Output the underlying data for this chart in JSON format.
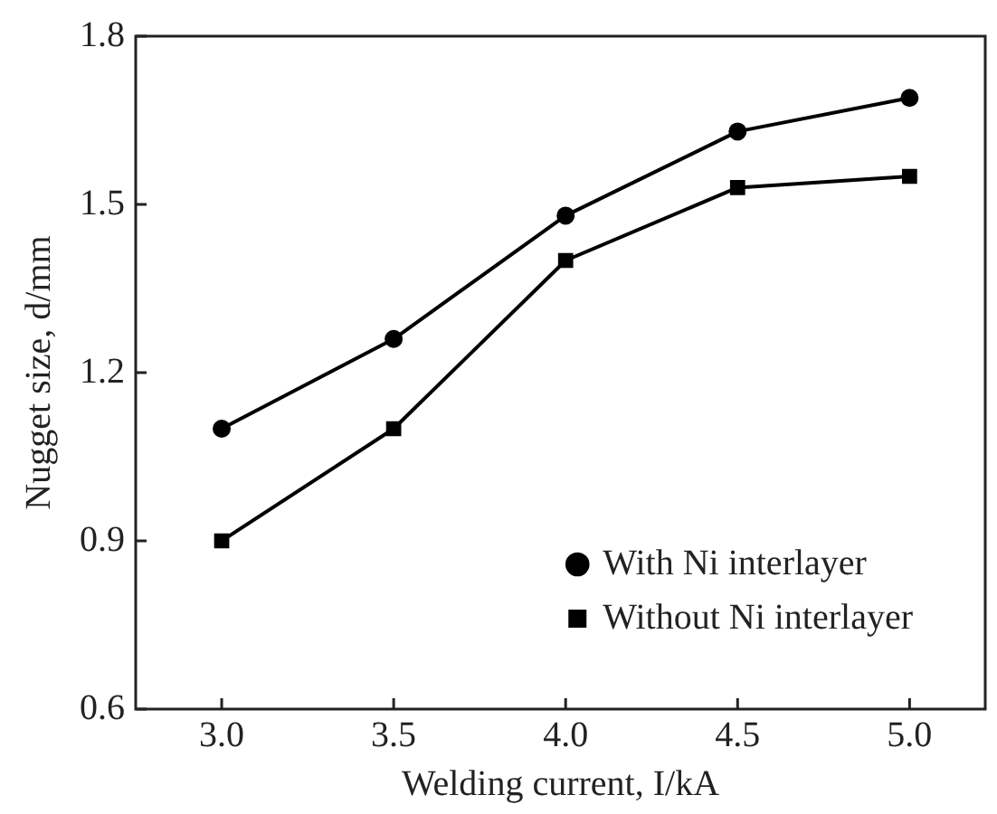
{
  "chart_data": {
    "type": "line",
    "xlabel": "Welding current, I/kA",
    "ylabel": "Nugget size, d/mm",
    "x": [
      3.0,
      3.5,
      4.0,
      4.5,
      5.0
    ],
    "series": [
      {
        "name": "With Ni interlayer",
        "color": "#000000",
        "marker": "circle",
        "values": [
          1.1,
          1.26,
          1.48,
          1.63,
          1.69
        ]
      },
      {
        "name": "Without Ni interlayer",
        "color": "#000000",
        "marker": "square",
        "values": [
          0.9,
          1.1,
          1.4,
          1.53,
          1.55
        ]
      }
    ],
    "xlim": [
      2.75,
      5.22
    ],
    "xticks": [
      {
        "value": 3.0,
        "label": "3.0"
      },
      {
        "value": 3.5,
        "label": "3.5"
      },
      {
        "value": 4.0,
        "label": "4.0"
      },
      {
        "value": 4.5,
        "label": "4.5"
      },
      {
        "value": 5.0,
        "label": "5.0"
      }
    ],
    "ylim": [
      0.6,
      1.8
    ],
    "yticks": [
      {
        "value": 0.6,
        "label": "0.6"
      },
      {
        "value": 0.9,
        "label": "0.9"
      },
      {
        "value": 1.2,
        "label": "1.2"
      },
      {
        "value": 1.5,
        "label": "1.5"
      },
      {
        "value": 1.8,
        "label": "1.8"
      }
    ],
    "grid": false,
    "legend": "bottom right",
    "line_style": "solid"
  }
}
